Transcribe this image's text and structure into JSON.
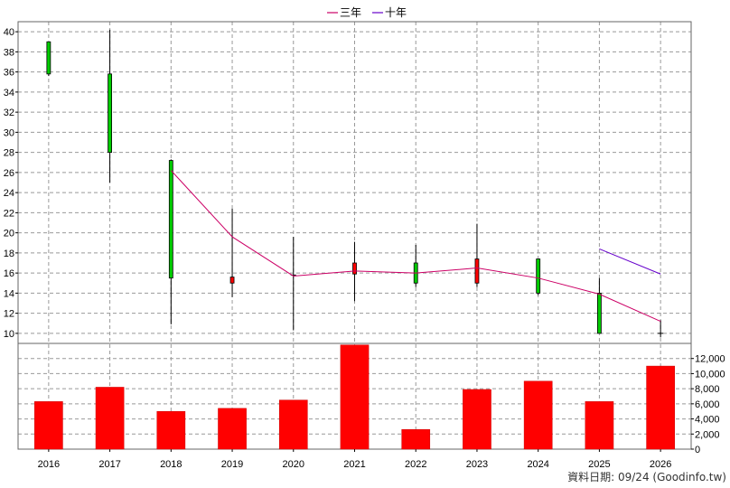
{
  "chart_data": {
    "type": "candlestick",
    "categories": [
      "2016",
      "2017",
      "2018",
      "2019",
      "2020",
      "2021",
      "2022",
      "2023",
      "2024",
      "2025",
      "2026"
    ],
    "price": {
      "ylim": [
        9,
        41
      ],
      "ticks": [
        10,
        12,
        14,
        16,
        18,
        20,
        22,
        24,
        26,
        28,
        30,
        32,
        34,
        36,
        38,
        40
      ],
      "candles": [
        {
          "x": "2016",
          "open": 39.0,
          "close": 35.8,
          "high": 39.0,
          "low": 35.6
        },
        {
          "x": "2017",
          "open": 35.8,
          "close": 28.0,
          "high": 40.2,
          "low": 25.0
        },
        {
          "x": "2018",
          "open": 27.2,
          "close": 15.5,
          "high": 27.3,
          "low": 10.9
        },
        {
          "x": "2019",
          "open": 15.0,
          "close": 15.6,
          "high": 22.4,
          "low": 13.6
        },
        {
          "x": "2020",
          "open": 15.8,
          "close": 15.8,
          "high": 19.6,
          "low": 10.3
        },
        {
          "x": "2021",
          "open": 15.9,
          "close": 17.0,
          "high": 19.1,
          "low": 13.2
        },
        {
          "x": "2022",
          "open": 17.0,
          "close": 15.0,
          "high": 18.8,
          "low": 14.6
        },
        {
          "x": "2023",
          "open": 15.0,
          "close": 17.4,
          "high": 20.9,
          "low": 14.6
        },
        {
          "x": "2024",
          "open": 17.4,
          "close": 14.0,
          "high": 17.4,
          "low": 13.8
        },
        {
          "x": "2025",
          "open": 14.0,
          "close": 10.0,
          "high": 15.5,
          "low": 10.0
        },
        {
          "x": "2026",
          "open": 10.0,
          "close": 10.0,
          "high": 11.3,
          "low": 9.6
        }
      ]
    },
    "series": [
      {
        "name": "三年",
        "color": "#cc0066",
        "values": [
          null,
          null,
          26.2,
          19.6,
          15.7,
          16.2,
          16.0,
          16.5,
          15.5,
          13.9,
          11.2
        ]
      },
      {
        "name": "十年",
        "color": "#6600cc",
        "values": [
          null,
          null,
          null,
          null,
          null,
          null,
          null,
          null,
          null,
          18.4,
          15.9
        ]
      }
    ],
    "volume": {
      "ylim": [
        0,
        14000
      ],
      "ticks": [
        0,
        2000,
        4000,
        6000,
        8000,
        10000,
        12000
      ],
      "tick_labels": [
        "0",
        "2,000",
        "4,000",
        "6,000",
        "8,000",
        "10,000",
        "12,000"
      ],
      "values": [
        6300,
        8200,
        5000,
        5400,
        6500,
        13800,
        2600,
        7900,
        9000,
        6300,
        11000
      ],
      "color": "#ff0000"
    },
    "up_color": "#ff0000",
    "down_color": "#00cc00",
    "grid": true,
    "legend": "top-center"
  },
  "footer": {
    "credit": "資料日期: 09/24  (Goodinfo.tw)"
  }
}
